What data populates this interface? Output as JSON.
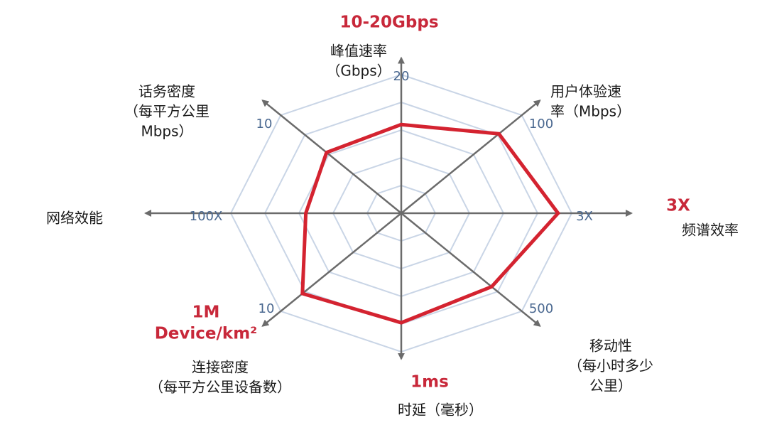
{
  "chart_data": {
    "type": "radar",
    "categories": [
      [
        "峰值速率",
        "（Gbps）"
      ],
      [
        "用户体验速",
        "率（Mbps）"
      ],
      [
        "频谱效率"
      ],
      [
        "移动性",
        "（每小时多少",
        "公里）"
      ],
      [
        "时延（毫秒）"
      ],
      [
        "连接密度",
        "（每平方公里设备数）"
      ],
      [
        "网络效能"
      ],
      [
        "话务密度",
        "（每平方公里",
        "Mbps）"
      ]
    ],
    "scale_labels": [
      "20",
      "100",
      "3X",
      "500",
      null,
      "10",
      "100X",
      "10"
    ],
    "targets": [
      [
        "10-20Gbps"
      ],
      null,
      [
        "3X"
      ],
      null,
      [
        "1ms"
      ],
      [
        "1M",
        "Device/km²"
      ],
      null,
      null
    ],
    "series": [
      {
        "color": "#d42330",
        "values": [
          64,
          81,
          92,
          75,
          79,
          82,
          56,
          62
        ]
      }
    ],
    "rlim": [
      0,
      100
    ],
    "rticks": [
      20,
      40,
      60,
      80,
      100
    ],
    "grid_color": "#c9d5e6",
    "axis_color": "#6b6b6b",
    "target_color": "#c8283a",
    "scale_color": "#4a6890"
  }
}
